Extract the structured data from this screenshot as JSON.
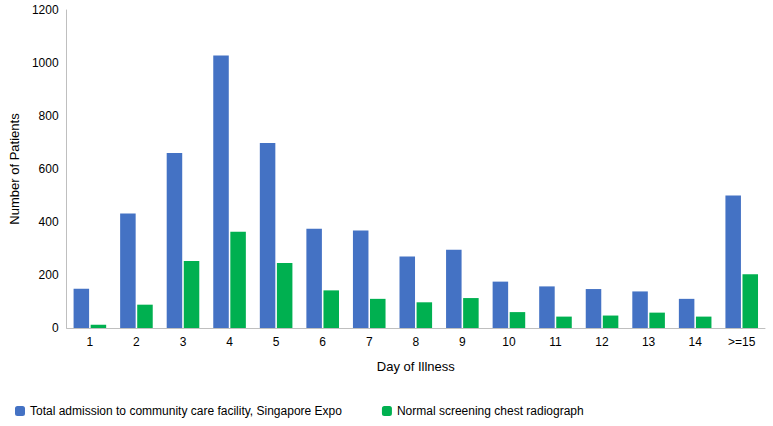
{
  "chart_data": {
    "type": "bar",
    "x_label": "Day of Illness",
    "y_label": "Number of Patients",
    "categories": [
      "1",
      "2",
      "3",
      "4",
      "5",
      "6",
      "7",
      "8",
      "9",
      "10",
      "11",
      "12",
      "13",
      "14",
      ">=15"
    ],
    "series": [
      {
        "name": "Total admission to community care facility, Singapore Expo",
        "color": "#4472c4",
        "values": [
          148,
          432,
          660,
          1028,
          698,
          375,
          368,
          270,
          295,
          175,
          157,
          147,
          138,
          110,
          500
        ]
      },
      {
        "name": "Normal screening chest radiograph",
        "color": "#00b050",
        "values": [
          12,
          88,
          253,
          363,
          245,
          142,
          110,
          97,
          113,
          60,
          43,
          47,
          58,
          43,
          203
        ]
      }
    ],
    "ylim": [
      0,
      1200
    ],
    "yticks": [
      0,
      200,
      400,
      600,
      800,
      1000,
      1200
    ],
    "grid": false,
    "legend": "bottom"
  }
}
